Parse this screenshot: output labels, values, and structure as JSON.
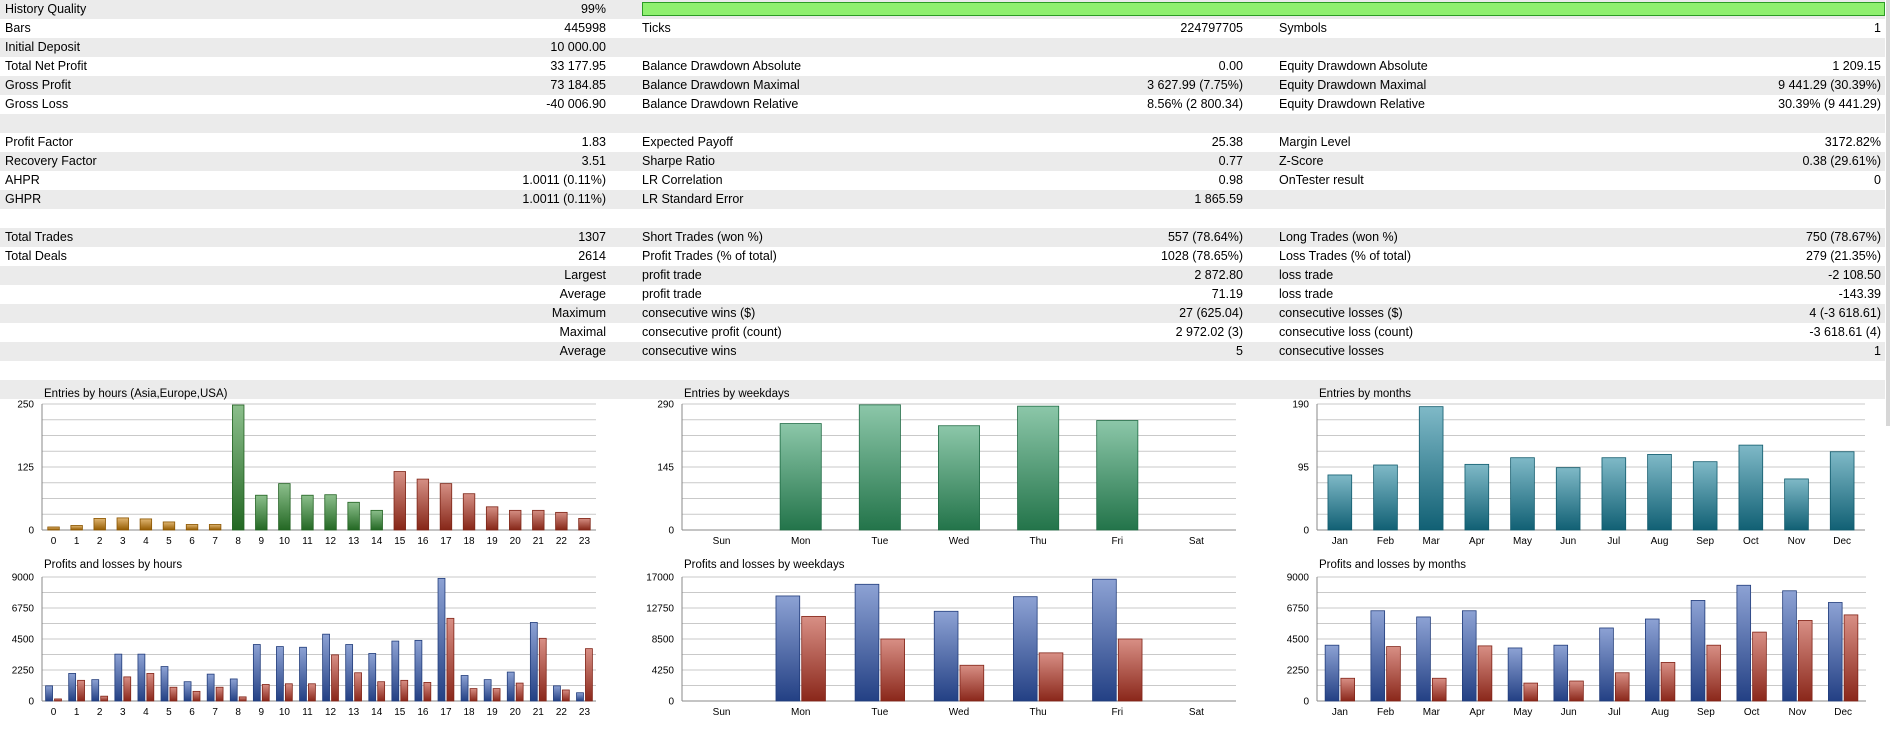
{
  "stats_rows": [
    {
      "alt": true,
      "c1": [
        "History Quality",
        "99%"
      ],
      "quality_bar": 0.99
    },
    {
      "alt": false,
      "c1": [
        "Bars",
        "445998"
      ],
      "c2": [
        "Ticks",
        "224797705"
      ],
      "c3": [
        "Symbols",
        "1"
      ]
    },
    {
      "alt": true,
      "c1": [
        "Initial Deposit",
        "10 000.00"
      ]
    },
    {
      "alt": false,
      "c1": [
        "Total Net Profit",
        "33 177.95"
      ],
      "c2": [
        "Balance Drawdown Absolute",
        "0.00"
      ],
      "c3": [
        "Equity Drawdown Absolute",
        "1 209.15"
      ]
    },
    {
      "alt": true,
      "c1": [
        "Gross Profit",
        "73 184.85"
      ],
      "c2": [
        "Balance Drawdown Maximal",
        "3 627.99 (7.75%)"
      ],
      "c3": [
        "Equity Drawdown Maximal",
        "9 441.29 (30.39%)"
      ]
    },
    {
      "alt": false,
      "c1": [
        "Gross Loss",
        "-40 006.90"
      ],
      "c2": [
        "Balance Drawdown Relative",
        "8.56% (2 800.34)"
      ],
      "c3": [
        "Equity Drawdown Relative",
        "30.39% (9 441.29)"
      ]
    },
    {
      "alt": true
    },
    {
      "alt": false,
      "c1": [
        "Profit Factor",
        "1.83"
      ],
      "c2": [
        "Expected Payoff",
        "25.38"
      ],
      "c3": [
        "Margin Level",
        "3172.82%"
      ]
    },
    {
      "alt": true,
      "c1": [
        "Recovery Factor",
        "3.51"
      ],
      "c2": [
        "Sharpe Ratio",
        "0.77"
      ],
      "c3": [
        "Z-Score",
        "0.38 (29.61%)"
      ]
    },
    {
      "alt": false,
      "c1": [
        "AHPR",
        "1.0011 (0.11%)"
      ],
      "c2": [
        "LR Correlation",
        "0.98"
      ],
      "c3": [
        "OnTester result",
        "0"
      ]
    },
    {
      "alt": true,
      "c1": [
        "GHPR",
        "1.0011 (0.11%)"
      ],
      "c2": [
        "LR Standard Error",
        "1 865.59"
      ]
    },
    {
      "alt": false
    },
    {
      "alt": true,
      "c1": [
        "Total Trades",
        "1307"
      ],
      "c2": [
        "Short Trades (won %)",
        "557 (78.64%)"
      ],
      "c3": [
        "Long Trades (won %)",
        "750 (78.67%)"
      ]
    },
    {
      "alt": false,
      "c1": [
        "Total Deals",
        "2614"
      ],
      "c2": [
        "Profit Trades (% of total)",
        "1028 (78.65%)"
      ],
      "c3": [
        "Loss Trades (% of total)",
        "279 (21.35%)"
      ]
    },
    {
      "alt": true,
      "c1": [
        "",
        "Largest"
      ],
      "c2": [
        "profit trade",
        "2 872.80"
      ],
      "c3": [
        "loss trade",
        "-2 108.50"
      ]
    },
    {
      "alt": false,
      "c1": [
        "",
        "Average"
      ],
      "c2": [
        "profit trade",
        "71.19"
      ],
      "c3": [
        "loss trade",
        "-143.39"
      ]
    },
    {
      "alt": true,
      "c1": [
        "",
        "Maximum"
      ],
      "c2": [
        "consecutive wins ($)",
        "27 (625.04)"
      ],
      "c3": [
        "consecutive losses ($)",
        "4 (-3 618.61)"
      ]
    },
    {
      "alt": false,
      "c1": [
        "",
        "Maximal"
      ],
      "c2": [
        "consecutive profit (count)",
        "2 972.02 (3)"
      ],
      "c3": [
        "consecutive loss (count)",
        "-3 618.61 (4)"
      ]
    },
    {
      "alt": true,
      "c1": [
        "",
        "Average"
      ],
      "c2": [
        "consecutive wins",
        "5"
      ],
      "c3": [
        "consecutive losses",
        "1"
      ]
    },
    {
      "alt": false
    },
    {
      "alt": true
    }
  ],
  "chart_data": [
    {
      "type": "bar",
      "title": "Entries by hours (Asia,Europe,USA)",
      "categories": [
        "0",
        "1",
        "2",
        "3",
        "4",
        "5",
        "6",
        "7",
        "8",
        "9",
        "10",
        "11",
        "12",
        "13",
        "14",
        "15",
        "16",
        "17",
        "18",
        "19",
        "20",
        "21",
        "22",
        "23"
      ],
      "values": [
        6,
        9,
        23,
        24,
        22,
        16,
        11,
        11,
        248,
        69,
        92,
        69,
        70,
        55,
        39,
        116,
        101,
        92,
        72,
        46,
        39,
        39,
        35,
        23
      ],
      "ylim": [
        0,
        250
      ],
      "yticks": [
        0,
        125,
        250
      ],
      "bar_colors": [
        "#c67a00",
        "#c67a00",
        "#c67a00",
        "#c67a00",
        "#c67a00",
        "#c67a00",
        "#c67a00",
        "#c67a00",
        "#2e8b2e",
        "#2e8b2e",
        "#2e8b2e",
        "#2e8b2e",
        "#2e8b2e",
        "#2e8b2e",
        "#2e8b2e",
        "#b3331f",
        "#b3331f",
        "#b3331f",
        "#b3331f",
        "#b3331f",
        "#b3331f",
        "#b3331f",
        "#b3331f",
        "#b3331f"
      ]
    },
    {
      "type": "bar",
      "title": "Entries by weekdays",
      "categories": [
        "Sun",
        "Mon",
        "Tue",
        "Wed",
        "Thu",
        "Fri",
        "Sat"
      ],
      "values": [
        0,
        245,
        288,
        240,
        285,
        252,
        0
      ],
      "ylim": [
        0,
        290
      ],
      "yticks": [
        0,
        145,
        290
      ],
      "bar_color": "#2e9a62"
    },
    {
      "type": "bar",
      "title": "Entries by months",
      "categories": [
        "Jan",
        "Feb",
        "Mar",
        "Apr",
        "May",
        "Jun",
        "Jul",
        "Aug",
        "Sep",
        "Oct",
        "Nov",
        "Dec"
      ],
      "values": [
        83,
        98,
        186,
        99,
        109,
        94,
        109,
        114,
        103,
        128,
        77,
        118
      ],
      "ylim": [
        0,
        190
      ],
      "yticks": [
        0,
        95,
        190
      ],
      "bar_color": "#17809a"
    },
    {
      "type": "bar",
      "title": "Profits and losses by hours",
      "categories": [
        "0",
        "1",
        "2",
        "3",
        "4",
        "5",
        "6",
        "7",
        "8",
        "9",
        "10",
        "11",
        "12",
        "13",
        "14",
        "15",
        "16",
        "17",
        "18",
        "19",
        "20",
        "21",
        "22",
        "23"
      ],
      "series": [
        {
          "values": [
            1100,
            2000,
            1550,
            3400,
            3400,
            2500,
            1400,
            1950,
            1600,
            4100,
            3950,
            3900,
            4850,
            4100,
            3450,
            4350,
            4400,
            8900,
            1850,
            1550,
            2100,
            5700,
            1100,
            600
          ]
        },
        {
          "values": [
            150,
            1500,
            350,
            1750,
            2000,
            1000,
            700,
            1000,
            300,
            1200,
            1250,
            1250,
            3350,
            2050,
            1400,
            1500,
            1350,
            6000,
            900,
            900,
            1300,
            4550,
            800,
            3800
          ]
        }
      ],
      "ylim": [
        0,
        9000
      ],
      "yticks": [
        0,
        2250,
        4500,
        6750,
        9000
      ],
      "series_colors": [
        "#2f55b0",
        "#b83422"
      ]
    },
    {
      "type": "bar",
      "title": "Profits and losses by weekdays",
      "categories": [
        "Sun",
        "Mon",
        "Tue",
        "Wed",
        "Thu",
        "Fri",
        "Sat"
      ],
      "series": [
        {
          "values": [
            0,
            14400,
            16000,
            12300,
            14300,
            16700,
            0
          ]
        },
        {
          "values": [
            0,
            11600,
            8500,
            4900,
            6600,
            8500,
            0
          ]
        }
      ],
      "ylim": [
        0,
        17000
      ],
      "yticks": [
        0,
        4250,
        8500,
        12750,
        17000
      ],
      "series_colors": [
        "#2f55b0",
        "#b83422"
      ]
    },
    {
      "type": "bar",
      "title": "Profits and losses by months",
      "categories": [
        "Jan",
        "Feb",
        "Mar",
        "Apr",
        "May",
        "Jun",
        "Jul",
        "Aug",
        "Sep",
        "Oct",
        "Nov",
        "Dec"
      ],
      "series": [
        {
          "values": [
            4050,
            6550,
            6100,
            6550,
            3850,
            4050,
            5300,
            5950,
            7300,
            8400,
            8000,
            7150
          ]
        },
        {
          "values": [
            1650,
            3950,
            1650,
            4000,
            1300,
            1450,
            2050,
            2800,
            4050,
            5000,
            5850,
            6250
          ]
        }
      ],
      "ylim": [
        0,
        9000
      ],
      "yticks": [
        0,
        2250,
        4500,
        6750,
        9000
      ],
      "series_colors": [
        "#2f55b0",
        "#b83422"
      ]
    }
  ]
}
